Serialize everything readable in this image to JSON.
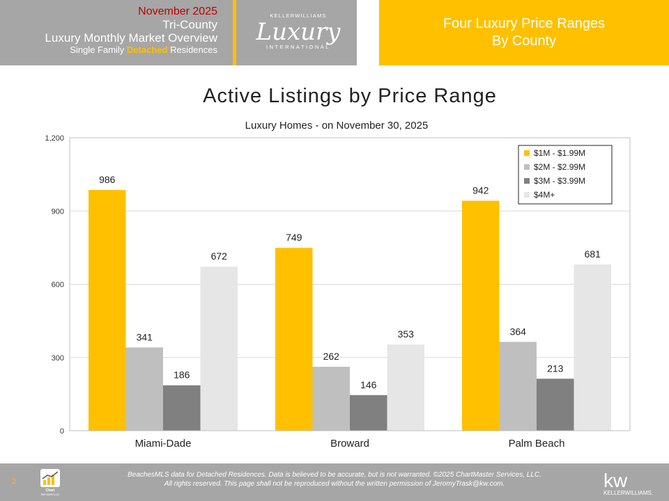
{
  "header": {
    "line1": "November 2025",
    "line2": "Tri-County",
    "line3": "Luxury Monthly Market Overview",
    "line4_pre": "Single Family ",
    "line4_highlight": "Detached",
    "line4_post": " Residences",
    "logo": {
      "top": "KELLERWILLIAMS",
      "script": "Luxury",
      "bottom": "INTERNATIONAL"
    },
    "right_line1": "Four Luxury Price Ranges",
    "right_line2": "By County"
  },
  "colors": {
    "gray_panel": "#a6a6a6",
    "accent": "#ffc000",
    "red_text": "#c00000"
  },
  "chart_data": {
    "type": "bar",
    "title": "Active Listings by Price Range",
    "subtitle": "Luxury Homes - on November 30, 2025",
    "categories": [
      "Miami-Dade",
      "Broward",
      "Palm Beach"
    ],
    "series": [
      {
        "name": "$1M - $1.99M",
        "color": "#ffc000",
        "values": [
          986,
          749,
          942
        ]
      },
      {
        "name": "$2M - $2.99M",
        "color": "#bfbfbf",
        "values": [
          341,
          262,
          364
        ]
      },
      {
        "name": "$3M - $3.99M",
        "color": "#808080",
        "values": [
          186,
          146,
          213
        ]
      },
      {
        "name": "$4M+",
        "color": "#e7e6e6",
        "values": [
          672,
          353,
          681
        ]
      }
    ],
    "y_ticks": [
      "0",
      "300",
      "600",
      "900",
      "1,200"
    ],
    "ylim": [
      0,
      1200
    ],
    "grid": true,
    "legend_position": "top-right"
  },
  "footer": {
    "page_number": "2",
    "line1": "BeachesMLS data for Detached Residences.  Data is believed to be accurate, but is not warranted.  ©2025  ChartMaster Services, LLC.",
    "line2": "All rights reserved. This page shall not be reproduced without the written permission of JeromyTrask@kw.com.",
    "chartmaster_logo": {
      "line1": "Chart",
      "line2": "Services LLC"
    },
    "kw_logo": {
      "mark": "kw",
      "name": "KELLERWILLIAMS."
    }
  }
}
